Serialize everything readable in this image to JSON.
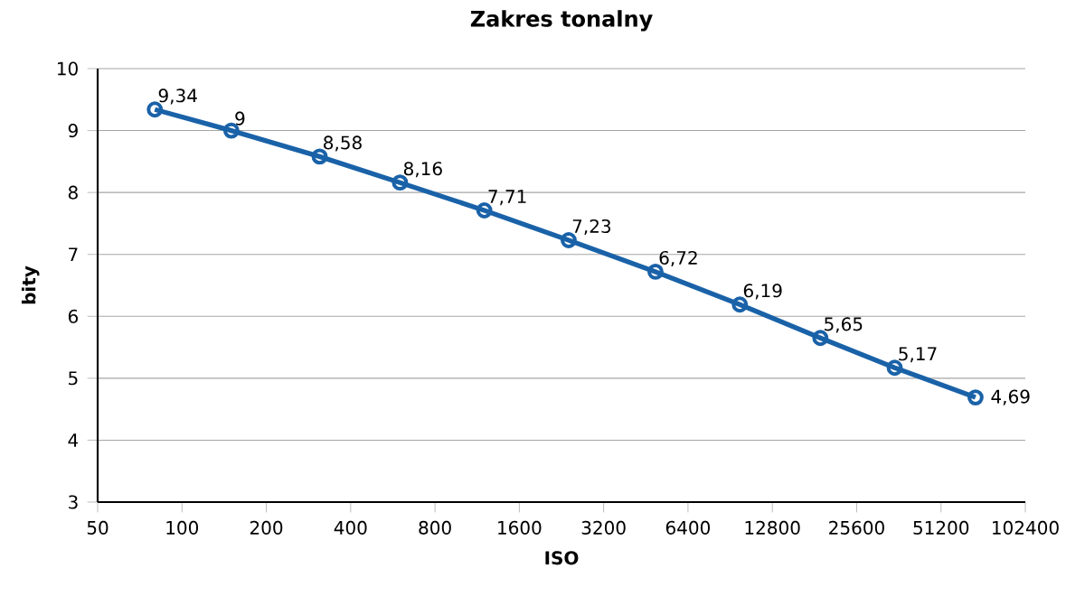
{
  "chart_data": {
    "type": "line",
    "title": "Zakres tonalny",
    "xlabel": "ISO",
    "ylabel": "bity",
    "x": [
      80,
      150,
      310,
      600,
      1200,
      2400,
      4900,
      9800,
      19000,
      35000,
      68000
    ],
    "series": [
      {
        "color": "#1a62a8",
        "values": [
          9.34,
          9,
          8.58,
          8.16,
          7.71,
          7.23,
          6.72,
          6.19,
          5.65,
          5.17,
          4.69
        ],
        "value_labels": [
          "9,34",
          "9",
          "8,58",
          "8,16",
          "7,71",
          "7,23",
          "6,72",
          "6,19",
          "5,65",
          "5,17",
          "4,69"
        ]
      }
    ],
    "log": "x",
    "xlim": [
      50,
      102400
    ],
    "xticks": [
      50,
      100,
      200,
      400,
      800,
      1600,
      3200,
      6400,
      12800,
      25600,
      51200,
      102400
    ],
    "ylim": [
      3,
      10
    ],
    "yticks": [
      3,
      4,
      5,
      6,
      7,
      8,
      9,
      10
    ],
    "grid": "y",
    "marker": "circle",
    "line_style": "solid",
    "legend": false
  }
}
